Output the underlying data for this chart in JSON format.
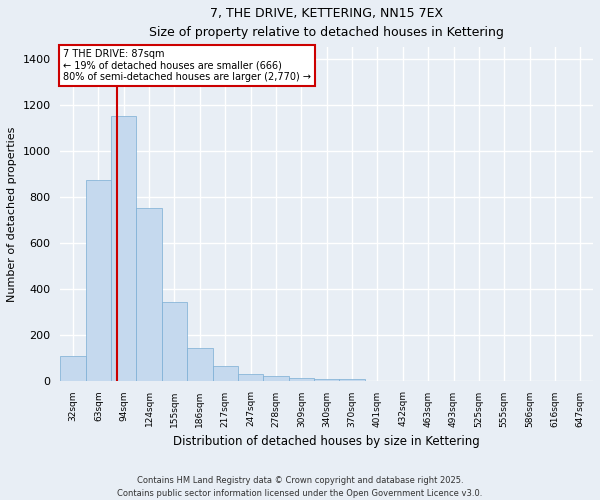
{
  "title": "7, THE DRIVE, KETTERING, NN15 7EX",
  "subtitle": "Size of property relative to detached houses in Kettering",
  "xlabel": "Distribution of detached houses by size in Kettering",
  "ylabel": "Number of detached properties",
  "bar_color": "#c5d9ee",
  "bar_edge_color": "#7aadd4",
  "categories": [
    "32sqm",
    "63sqm",
    "94sqm",
    "124sqm",
    "155sqm",
    "186sqm",
    "217sqm",
    "247sqm",
    "278sqm",
    "309sqm",
    "340sqm",
    "370sqm",
    "401sqm",
    "432sqm",
    "463sqm",
    "493sqm",
    "525sqm",
    "555sqm",
    "586sqm",
    "616sqm",
    "647sqm"
  ],
  "values": [
    105,
    870,
    1150,
    750,
    340,
    140,
    65,
    30,
    18,
    10,
    6,
    5,
    0,
    0,
    0,
    0,
    0,
    0,
    0,
    0,
    0
  ],
  "ylim": [
    0,
    1450
  ],
  "yticks": [
    0,
    200,
    400,
    600,
    800,
    1000,
    1200,
    1400
  ],
  "property_label": "7 THE DRIVE: 87sqm",
  "annotation_line1": "← 19% of detached houses are smaller (666)",
  "annotation_line2": "80% of semi-detached houses are larger (2,770) →",
  "annotation_box_color": "#ffffff",
  "annotation_box_edge": "#cc0000",
  "vline_color": "#cc0000",
  "vline_x_index": 1.73,
  "footer_line1": "Contains HM Land Registry data © Crown copyright and database right 2025.",
  "footer_line2": "Contains public sector information licensed under the Open Government Licence v3.0.",
  "background_color": "#e8eef5",
  "grid_color": "#ffffff"
}
